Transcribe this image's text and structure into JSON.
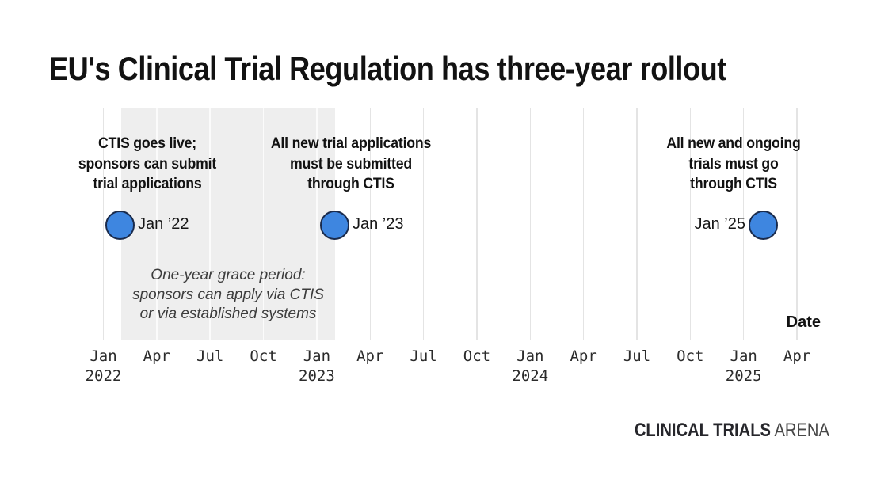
{
  "title": "EU's Clinical Trial Regulation has three-year rollout",
  "chart_data": {
    "type": "scatter",
    "title": "EU's Clinical Trial Regulation has three-year rollout",
    "xlabel": "Date",
    "ylabel": "",
    "grid": "vertical-only",
    "x_axis": {
      "tick_interval": "quarterly",
      "ticks": [
        {
          "month": "Jan",
          "year": "2022"
        },
        {
          "month": "Apr",
          "year": ""
        },
        {
          "month": "Jul",
          "year": ""
        },
        {
          "month": "Oct",
          "year": ""
        },
        {
          "month": "Jan",
          "year": "2023"
        },
        {
          "month": "Apr",
          "year": ""
        },
        {
          "month": "Jul",
          "year": ""
        },
        {
          "month": "Oct",
          "year": ""
        },
        {
          "month": "Jan",
          "year": "2024"
        },
        {
          "month": "Apr",
          "year": ""
        },
        {
          "month": "Jul",
          "year": ""
        },
        {
          "month": "Oct",
          "year": ""
        },
        {
          "month": "Jan",
          "year": "2025"
        },
        {
          "month": "Apr",
          "year": ""
        }
      ]
    },
    "points": [
      {
        "x": "Jan ’22",
        "date_label": "Jan ’22",
        "label_lines": [
          "CTIS goes live;",
          "sponsors can submit",
          "trial applications"
        ],
        "label": "CTIS goes live; sponsors can submit trial applications",
        "marker_color": "#3E86E0"
      },
      {
        "x": "Jan ’23",
        "date_label": "Jan ’23",
        "label_lines": [
          "All new trial applications",
          "must be submitted",
          "through CTIS"
        ],
        "label": "All new trial applications must be submitted through CTIS",
        "marker_color": "#3E86E0"
      },
      {
        "x": "Jan ’25",
        "date_label": "Jan ’25",
        "label_lines": [
          "All new and ongoing",
          "trials must go",
          "through CTIS"
        ],
        "label": "All new and ongoing trials must go through CTIS",
        "marker_color": "#3E86E0"
      }
    ],
    "shaded_span": {
      "from": "Jan ’22",
      "to": "Jan ’23",
      "color": "#EEEEEE",
      "label_lines": [
        "One-year grace period:",
        "sponsors can apply via CTIS",
        "or via established systems"
      ],
      "label": "One-year grace period: sponsors can apply via CTIS or via established systems"
    },
    "colors": {
      "marker_fill": "#3E86E0",
      "marker_border": "#1A2B4C",
      "gridline": "#E4E4E4",
      "background": "#FFFFFF"
    }
  },
  "footer": {
    "brand_bold": "CLINICAL TRIALS",
    "brand_light": "ARENA"
  }
}
